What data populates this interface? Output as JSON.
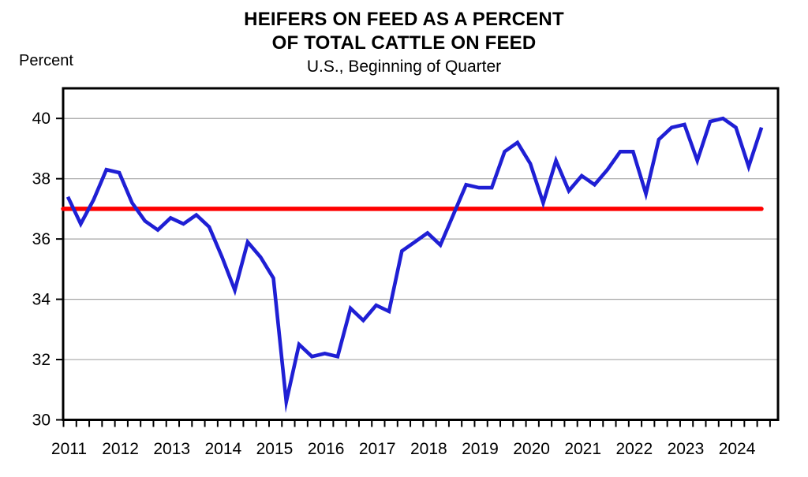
{
  "header": {
    "title_line1": "HEIFERS ON FEED AS A PERCENT",
    "title_line2": "OF TOTAL CATTLE ON FEED",
    "subtitle": "U.S., Beginning of Quarter",
    "y_unit_label": "Percent"
  },
  "chart_data": {
    "type": "line",
    "title": "HEIFERS ON FEED AS A PERCENT OF TOTAL CATTLE ON FEED",
    "subtitle": "U.S., Beginning of Quarter",
    "ylabel": "Percent",
    "xlabel": "",
    "ylim": [
      30,
      41
    ],
    "yticks": [
      30,
      32,
      34,
      36,
      38,
      40
    ],
    "grid": "horizontal-only",
    "gridline_color": "#a6a6a6",
    "legend_position": "none",
    "x_frequency": "quarterly",
    "x_start": "2011 Q1",
    "x_end": "2024 Q3",
    "year_labels": [
      "2011",
      "2012",
      "2013",
      "2014",
      "2015",
      "2016",
      "2017",
      "2018",
      "2019",
      "2020",
      "2021",
      "2022",
      "2023",
      "2024"
    ],
    "series": [
      {
        "name": "Heifers on feed as percent of total cattle on feed",
        "color": "#1f1fd4",
        "values": [
          37.4,
          36.5,
          37.3,
          38.3,
          38.2,
          37.2,
          36.6,
          36.3,
          36.7,
          36.5,
          36.8,
          36.4,
          35.4,
          34.3,
          35.9,
          35.4,
          34.7,
          30.6,
          32.5,
          32.1,
          32.2,
          32.1,
          33.7,
          33.3,
          33.8,
          33.6,
          35.6,
          35.9,
          36.2,
          35.8,
          36.8,
          37.8,
          37.7,
          37.7,
          38.9,
          39.2,
          38.5,
          37.2,
          38.6,
          37.6,
          38.1,
          37.8,
          38.3,
          38.9,
          38.9,
          37.5,
          39.3,
          39.7,
          39.8,
          38.6,
          39.9,
          40.0,
          39.7,
          38.4,
          39.7
        ]
      },
      {
        "name": "Reference line",
        "color": "#fe0000",
        "constant_value": 37.0
      }
    ]
  }
}
